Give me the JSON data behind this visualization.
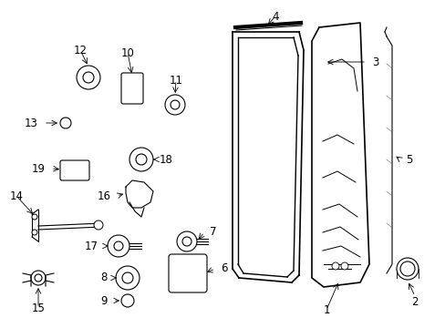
{
  "bg_color": "#ffffff",
  "lc": "#000000",
  "fig_width": 4.89,
  "fig_height": 3.6,
  "dpi": 100,
  "label_fs": 8.5
}
